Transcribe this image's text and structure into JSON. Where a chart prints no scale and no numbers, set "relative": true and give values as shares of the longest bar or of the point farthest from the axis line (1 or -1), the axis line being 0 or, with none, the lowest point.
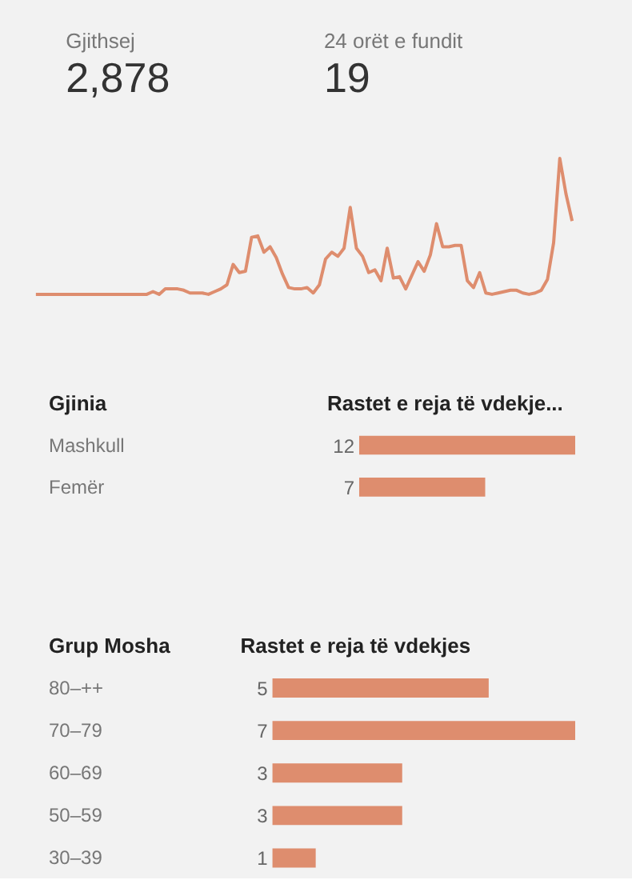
{
  "chart_data": [
    {
      "type": "other",
      "annotations": [
        "Gjithsej",
        "2,878",
        "24 orët e fundit",
        "19"
      ]
    },
    {
      "type": "line",
      "relative": true,
      "color": "#de8d6e",
      "categories": [
        null,
        null,
        null,
        null,
        null,
        null,
        null,
        null,
        null,
        null,
        null,
        null,
        null,
        null,
        null,
        null,
        null,
        null,
        null,
        null,
        null,
        null,
        null,
        null,
        null,
        null,
        null,
        null,
        null,
        null,
        null,
        null,
        null,
        null,
        null,
        null,
        null,
        null,
        null,
        null,
        null,
        null,
        null,
        null,
        null,
        null,
        null,
        null,
        null,
        null,
        null,
        null,
        null,
        null,
        null,
        null,
        null,
        null,
        null,
        null,
        null,
        null,
        null,
        null,
        null,
        null,
        null,
        null,
        null,
        null,
        null,
        null,
        null,
        null,
        null,
        null,
        null,
        null,
        null,
        null,
        null,
        null,
        null,
        null,
        null,
        null,
        null,
        null
      ],
      "values": [
        0,
        0,
        0,
        0,
        0,
        0,
        0,
        0,
        0,
        0,
        0,
        0,
        0,
        0,
        0,
        0,
        0,
        0,
        0,
        0.02,
        0,
        0.04,
        0.04,
        0.04,
        0.03,
        0.01,
        0.01,
        0.01,
        0,
        0.02,
        0.04,
        0.07,
        0.22,
        0.16,
        0.17,
        0.42,
        0.43,
        0.31,
        0.35,
        0.27,
        0.15,
        0.05,
        0.04,
        0.04,
        0.05,
        0.01,
        0.07,
        0.26,
        0.31,
        0.28,
        0.34,
        0.64,
        0.34,
        0.28,
        0.16,
        0.18,
        0.1,
        0.34,
        0.12,
        0.13,
        0.04,
        0.14,
        0.24,
        0.17,
        0.29,
        0.52,
        0.35,
        0.35,
        0.36,
        0.36,
        0.1,
        0.05,
        0.16,
        0.01,
        0,
        0.01,
        0.02,
        0.03,
        0.03,
        0.01,
        0,
        0.01,
        0.03,
        0.11,
        0.38,
        1,
        0.74,
        0.54
      ]
    },
    {
      "type": "bar",
      "orientation": "horizontal",
      "ylabel": "Gjinia",
      "xlabel": "Rastet e reja të vdekje...",
      "categories": [
        "Mashkull",
        "Femër"
      ],
      "values": [
        12,
        7
      ],
      "color": "#de8d6e",
      "data_labels": true
    },
    {
      "type": "bar",
      "orientation": "horizontal",
      "ylabel": "Grup Mosha",
      "xlabel": "Rastet e reja të vdekjes",
      "categories": [
        "80–++",
        "70–79",
        "60–69",
        "50–59",
        "30–39"
      ],
      "values": [
        5,
        7,
        3,
        3,
        1
      ],
      "color": "#de8d6e",
      "data_labels": true
    }
  ]
}
